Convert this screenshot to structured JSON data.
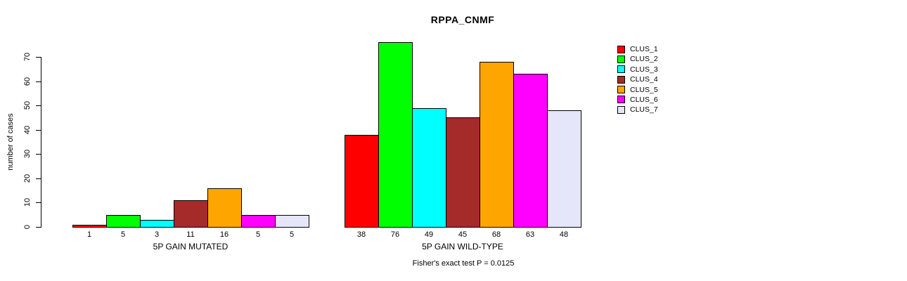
{
  "chart_data": {
    "type": "bar",
    "title": "RPPA_CNMF",
    "ylabel": "number of cases",
    "ylim": [
      0,
      70
    ],
    "yticks": [
      0,
      10,
      20,
      30,
      40,
      50,
      60,
      70
    ],
    "grid": false,
    "categories": [
      "CLUS_1",
      "CLUS_2",
      "CLUS_3",
      "CLUS_4",
      "CLUS_5",
      "CLUS_6",
      "CLUS_7"
    ],
    "colors": [
      "#FF0000",
      "#00FF00",
      "#00FFFF",
      "#A52A2A",
      "#FFA500",
      "#FF00FF",
      "#E6E6FA"
    ],
    "bar_border_color": "#000000",
    "groups": [
      {
        "label": "5P GAIN MUTATED",
        "values": [
          1,
          5,
          3,
          11,
          16,
          5,
          5
        ]
      },
      {
        "label": "5P GAIN WILD-TYPE",
        "values": [
          38,
          76,
          49,
          45,
          68,
          63,
          48
        ]
      }
    ],
    "legend": {
      "position": "right",
      "entries": [
        "CLUS_1",
        "CLUS_2",
        "CLUS_3",
        "CLUS_4",
        "CLUS_5",
        "CLUS_6",
        "CLUS_7"
      ]
    },
    "annotation": "Fisher's exact test P = 0.0125"
  }
}
